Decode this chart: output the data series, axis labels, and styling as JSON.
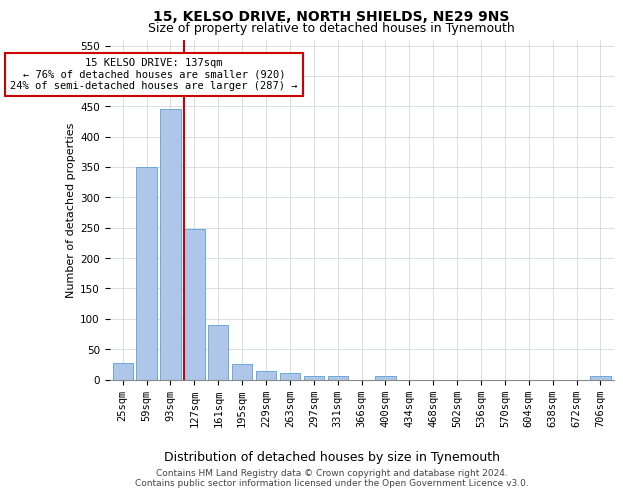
{
  "title1": "15, KELSO DRIVE, NORTH SHIELDS, NE29 9NS",
  "title2": "Size of property relative to detached houses in Tynemouth",
  "xlabel": "Distribution of detached houses by size in Tynemouth",
  "ylabel": "Number of detached properties",
  "categories": [
    "25sqm",
    "59sqm",
    "93sqm",
    "127sqm",
    "161sqm",
    "195sqm",
    "229sqm",
    "263sqm",
    "297sqm",
    "331sqm",
    "366sqm",
    "400sqm",
    "434sqm",
    "468sqm",
    "502sqm",
    "536sqm",
    "570sqm",
    "604sqm",
    "638sqm",
    "672sqm",
    "706sqm"
  ],
  "values": [
    27,
    350,
    445,
    248,
    90,
    25,
    14,
    10,
    6,
    5,
    0,
    5,
    0,
    0,
    0,
    0,
    0,
    0,
    0,
    0,
    5
  ],
  "bar_color": "#aec6e8",
  "bar_edge_color": "#5a9fd4",
  "vline_color": "#cc0000",
  "vline_index": 3,
  "annotation_text": "15 KELSO DRIVE: 137sqm\n← 76% of detached houses are smaller (920)\n24% of semi-detached houses are larger (287) →",
  "annotation_box_color": "#ffffff",
  "annotation_box_edge": "#cc0000",
  "ylim": [
    0,
    560
  ],
  "yticks": [
    0,
    50,
    100,
    150,
    200,
    250,
    300,
    350,
    400,
    450,
    500,
    550
  ],
  "footer1": "Contains HM Land Registry data © Crown copyright and database right 2024.",
  "footer2": "Contains public sector information licensed under the Open Government Licence v3.0.",
  "bg_color": "#ffffff",
  "grid_color": "#c8d0d8",
  "title1_fontsize": 10,
  "title2_fontsize": 9,
  "xlabel_fontsize": 9,
  "ylabel_fontsize": 8,
  "tick_fontsize": 7.5,
  "annot_fontsize": 7.5,
  "footer_fontsize": 6.5
}
